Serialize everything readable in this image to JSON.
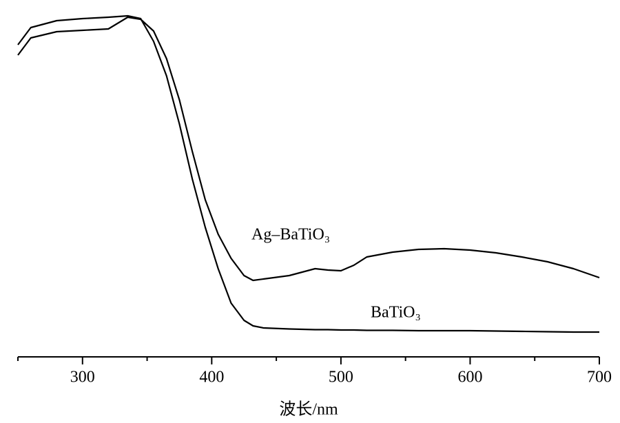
{
  "chart_data": {
    "type": "line",
    "xlabel": "波长/nm",
    "x": [
      250,
      260,
      280,
      300,
      320,
      335,
      345,
      355,
      365,
      375,
      385,
      395,
      405,
      415,
      425,
      432,
      440,
      460,
      480,
      490,
      500,
      510,
      520,
      540,
      560,
      580,
      600,
      620,
      640,
      660,
      680,
      700
    ],
    "series": [
      {
        "name": "BaTiO₃",
        "color": "#000000",
        "values": [
          0.906,
          0.956,
          0.976,
          0.982,
          0.986,
          0.99,
          0.982,
          0.916,
          0.816,
          0.676,
          0.516,
          0.376,
          0.256,
          0.156,
          0.106,
          0.09,
          0.084,
          0.081,
          0.079,
          0.079,
          0.078,
          0.078,
          0.077,
          0.077,
          0.076,
          0.076,
          0.076,
          0.075,
          0.074,
          0.073,
          0.072,
          0.072
        ]
      },
      {
        "name": "Ag–BaTiO₃",
        "color": "#000000",
        "values": [
          0.876,
          0.926,
          0.944,
          0.948,
          0.952,
          0.986,
          0.98,
          0.946,
          0.866,
          0.746,
          0.596,
          0.456,
          0.356,
          0.286,
          0.236,
          0.222,
          0.226,
          0.236,
          0.256,
          0.252,
          0.25,
          0.266,
          0.29,
          0.304,
          0.312,
          0.314,
          0.31,
          0.302,
          0.29,
          0.276,
          0.256,
          0.23
        ]
      }
    ],
    "xlim": [
      250,
      700
    ],
    "xticks": [
      300,
      400,
      500,
      600,
      700
    ],
    "minor_xticks": [
      250,
      350,
      450,
      550,
      650
    ],
    "ylim": [
      0,
      1
    ],
    "grid": false
  }
}
